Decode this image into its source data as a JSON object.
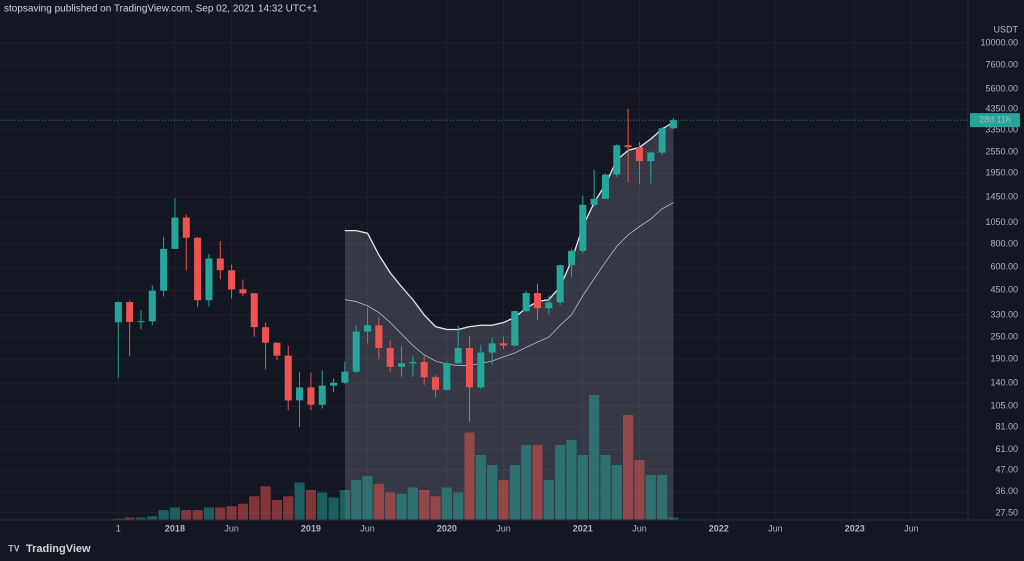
{
  "header": "stopsaving published on TradingView.com, Sep 02, 2021 14:32 UTC+1",
  "footer": "TradingView",
  "chart_data": {
    "type": "candlestick",
    "currency": "USDT",
    "countdown": "28d 11h",
    "log_scale": true,
    "grid": true,
    "up_color": "#26a69a",
    "down_color": "#ef5350",
    "x": [
      "2017-08",
      "2017-09",
      "2017-10",
      "2017-11",
      "2017-12",
      "2018-01",
      "2018-02",
      "2018-03",
      "2018-04",
      "2018-05",
      "2018-06",
      "2018-07",
      "2018-08",
      "2018-09",
      "2018-10",
      "2018-11",
      "2018-12",
      "2019-01",
      "2019-02",
      "2019-03",
      "2019-04",
      "2019-05",
      "2019-06",
      "2019-07",
      "2019-08",
      "2019-09",
      "2019-10",
      "2019-11",
      "2019-12",
      "2020-01",
      "2020-02",
      "2020-03",
      "2020-04",
      "2020-05",
      "2020-06",
      "2020-07",
      "2020-08",
      "2020-09",
      "2020-10",
      "2020-11",
      "2020-12",
      "2021-01",
      "2021-02",
      "2021-03",
      "2021-04",
      "2021-05",
      "2021-06",
      "2021-07",
      "2021-08",
      "2021-09"
    ],
    "open": [
      301,
      388,
      302,
      305,
      447,
      756,
      1119,
      869,
      397,
      670,
      578,
      455,
      433,
      283,
      233,
      198,
      113,
      133,
      107,
      136,
      141,
      162,
      268,
      290,
      218,
      172,
      180,
      183,
      151,
      129,
      180,
      218,
      133,
      206,
      231,
      225,
      346,
      434,
      359,
      386,
      616,
      737,
      1314,
      1416,
      1918,
      2773,
      2707,
      2275,
      2530,
      3432
    ],
    "high": [
      392,
      395,
      350,
      478,
      880,
      1424,
      1160,
      878,
      709,
      835,
      621,
      515,
      434,
      300,
      234,
      225,
      161,
      160,
      165,
      149,
      184,
      289,
      362,
      320,
      240,
      224,
      198,
      196,
      155,
      184,
      288,
      253,
      227,
      247,
      252,
      348,
      446,
      488,
      421,
      622,
      757,
      1476,
      2040,
      1947,
      2798,
      4380,
      2892,
      2551,
      3470,
      3900
    ],
    "low": [
      150,
      197,
      276,
      290,
      416,
      756,
      575,
      366,
      367,
      516,
      405,
      419,
      251,
      167,
      187,
      100,
      81,
      100,
      102,
      125,
      139,
      159,
      231,
      190,
      162,
      152,
      152,
      137,
      117,
      128,
      179,
      86,
      130,
      177,
      215,
      222,
      344,
      308,
      333,
      373,
      533,
      715,
      1282,
      1434,
      1866,
      1737,
      1700,
      1718,
      2450,
      3400
    ],
    "close": [
      388,
      302,
      305,
      447,
      756,
      1119,
      869,
      397,
      670,
      578,
      455,
      433,
      283,
      233,
      198,
      113,
      133,
      107,
      136,
      141,
      162,
      268,
      290,
      218,
      172,
      180,
      183,
      151,
      129,
      180,
      218,
      133,
      206,
      231,
      225,
      346,
      434,
      359,
      386,
      616,
      737,
      1314,
      1416,
      1918,
      2773,
      2707,
      2275,
      2530,
      3432,
      3800
    ],
    "volume": [
      1,
      2,
      2,
      3,
      8,
      10,
      8,
      8,
      10,
      10,
      11,
      13,
      19,
      27,
      16,
      19,
      30,
      24,
      22,
      18,
      24,
      32,
      35,
      29,
      22,
      21,
      26,
      24,
      19,
      26,
      22,
      70,
      52,
      44,
      32,
      44,
      60,
      60,
      32,
      60,
      64,
      52,
      100,
      52,
      44,
      84,
      48,
      36,
      36,
      2
    ],
    "volume_ylim": [
      0,
      100
    ],
    "band_upper": [
      null,
      null,
      null,
      null,
      null,
      null,
      null,
      null,
      null,
      null,
      null,
      null,
      null,
      null,
      null,
      null,
      null,
      null,
      null,
      null,
      950,
      950,
      920,
      700,
      560,
      470,
      400,
      330,
      285,
      275,
      275,
      285,
      290,
      290,
      300,
      320,
      360,
      390,
      400,
      470,
      650,
      1000,
      1350,
      1700,
      2300,
      2600,
      2700,
      3000,
      3400,
      3700
    ],
    "band_middle": [
      null,
      null,
      null,
      null,
      null,
      null,
      null,
      null,
      null,
      null,
      null,
      null,
      null,
      null,
      null,
      null,
      null,
      null,
      null,
      null,
      400,
      390,
      370,
      340,
      300,
      260,
      225,
      200,
      185,
      178,
      175,
      175,
      180,
      185,
      195,
      205,
      220,
      235,
      250,
      290,
      330,
      420,
      520,
      640,
      780,
      900,
      1000,
      1100,
      1250,
      1350
    ],
    "xlim": [
      "2016-10",
      "2023-11"
    ],
    "xticks": [
      {
        "value": "2017-08",
        "label": "1"
      },
      {
        "value": "2018-01",
        "label": "2018"
      },
      {
        "value": "2018-06",
        "label": "Jun"
      },
      {
        "value": "2019-01",
        "label": "2019"
      },
      {
        "value": "2019-06",
        "label": "Jun"
      },
      {
        "value": "2020-01",
        "label": "2020"
      },
      {
        "value": "2020-06",
        "label": "Jun"
      },
      {
        "value": "2021-01",
        "label": "2021"
      },
      {
        "value": "2021-06",
        "label": "Jun"
      },
      {
        "value": "2022-01",
        "label": "2022"
      },
      {
        "value": "2022-06",
        "label": "Jun"
      },
      {
        "value": "2023-01",
        "label": "2023"
      },
      {
        "value": "2023-06",
        "label": "Jun"
      }
    ],
    "ylim": [
      25.2,
      17150
    ],
    "yticks": [
      {
        "value": 10000,
        "label": "10000.00"
      },
      {
        "value": 7600,
        "label": "7600.00"
      },
      {
        "value": 5600,
        "label": "5600.00"
      },
      {
        "value": 4350,
        "label": "4350.00"
      },
      {
        "value": 3350,
        "label": "3350.00"
      },
      {
        "value": 2550,
        "label": "2550.00"
      },
      {
        "value": 1950,
        "label": "1950.00"
      },
      {
        "value": 1450,
        "label": "1450.00"
      },
      {
        "value": 1050,
        "label": "1050.00"
      },
      {
        "value": 800,
        "label": "800.00"
      },
      {
        "value": 600,
        "label": "600.00"
      },
      {
        "value": 450,
        "label": "450.00"
      },
      {
        "value": 330,
        "label": "330.00"
      },
      {
        "value": 250,
        "label": "250.00"
      },
      {
        "value": 190,
        "label": "190.00"
      },
      {
        "value": 140,
        "label": "140.00"
      },
      {
        "value": 105,
        "label": "105.00"
      },
      {
        "value": 81,
        "label": "81.00"
      },
      {
        "value": 61,
        "label": "61.00"
      },
      {
        "value": 47,
        "label": "47.00"
      },
      {
        "value": 36,
        "label": "36.00"
      },
      {
        "value": 27.5,
        "label": "27.50"
      }
    ]
  }
}
